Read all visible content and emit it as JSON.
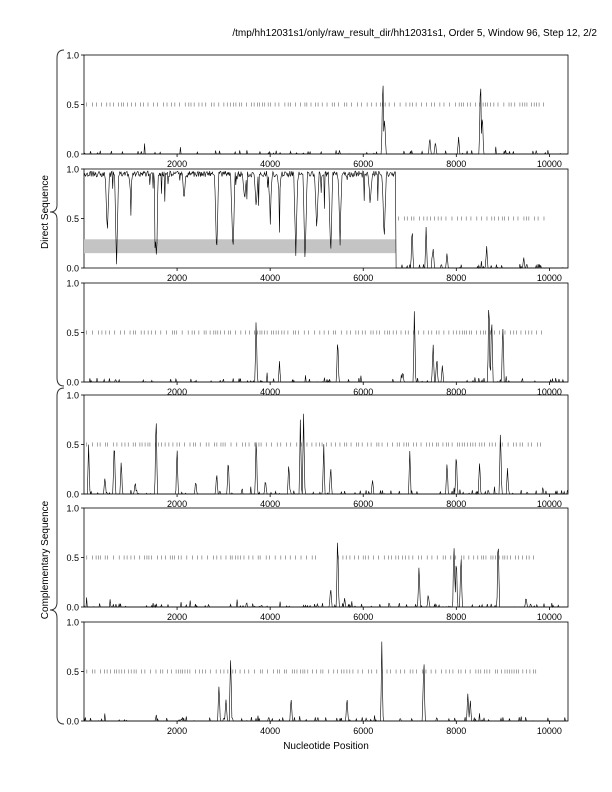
{
  "header": {
    "title": "/tmp/hh12031s1/only/raw_result_dir/hh12031s1, Order 5, Window 96, Step 12, 2/2"
  },
  "groups": {
    "direct_label": "Direct Sequence",
    "complementary_label": "Complementary Sequence"
  },
  "chart_data": [
    {
      "type": "line",
      "panel": 1,
      "group": "direct",
      "xlim": [
        0,
        10400
      ],
      "ylim": [
        0,
        1
      ],
      "x_ticks": [
        "2000",
        "4000",
        "6000",
        "8000",
        "10000"
      ],
      "y_ticks": [
        "0.0",
        "0.5",
        "1.0"
      ],
      "marker_level": 0.5,
      "marker_ranges": [
        [
          0,
          9900
        ]
      ],
      "shaded_band": null,
      "peaks": [
        [
          6420,
          0.93
        ],
        [
          6460,
          0.5
        ],
        [
          7430,
          0.18
        ],
        [
          7550,
          0.15
        ],
        [
          8050,
          0.2
        ],
        [
          8520,
          0.92
        ],
        [
          8560,
          0.45
        ]
      ]
    },
    {
      "type": "line",
      "panel": 2,
      "group": "direct",
      "xlim": [
        0,
        10400
      ],
      "ylim": [
        0,
        1
      ],
      "x_ticks": [
        "2000",
        "4000",
        "6000",
        "8000",
        "10000"
      ],
      "y_ticks": [
        "0.0",
        "0.5",
        "1.0"
      ],
      "marker_level": 0.5,
      "marker_ranges": [
        [
          6700,
          9900
        ]
      ],
      "shaded_band": {
        "x": [
          0,
          6700
        ],
        "y": [
          0.15,
          0.29
        ]
      },
      "high_region": [
        0,
        6700
      ],
      "dips": [
        [
          500,
          0.3
        ],
        [
          700,
          0.02
        ],
        [
          1000,
          0.75
        ],
        [
          1550,
          0.05
        ],
        [
          2150,
          0.65
        ],
        [
          2850,
          0.1
        ],
        [
          3200,
          0.08
        ],
        [
          3450,
          0.65
        ],
        [
          3700,
          0.6
        ],
        [
          4000,
          0.55
        ],
        [
          4200,
          0.7
        ],
        [
          4550,
          0.12
        ],
        [
          4750,
          0.02
        ],
        [
          5000,
          0.35
        ],
        [
          5300,
          0.08
        ],
        [
          5500,
          0.3
        ],
        [
          6150,
          0.6
        ],
        [
          6450,
          0.25
        ]
      ],
      "peaks": [
        [
          7050,
          0.52
        ],
        [
          7350,
          0.45
        ],
        [
          7500,
          0.28
        ],
        [
          7800,
          0.18
        ],
        [
          8650,
          0.25
        ],
        [
          9450,
          0.12
        ]
      ]
    },
    {
      "type": "line",
      "panel": 3,
      "group": "direct",
      "xlim": [
        0,
        10400
      ],
      "ylim": [
        0,
        1
      ],
      "x_ticks": [
        "2000",
        "4000",
        "6000",
        "8000",
        "10000"
      ],
      "y_ticks": [
        "0.0",
        "0.5",
        "1.0"
      ],
      "marker_level": 0.5,
      "marker_ranges": [
        [
          0,
          9900
        ]
      ],
      "shaded_band": null,
      "peaks": [
        [
          3700,
          0.72
        ],
        [
          4200,
          0.18
        ],
        [
          5450,
          0.55
        ],
        [
          6850,
          0.12
        ],
        [
          7100,
          0.85
        ],
        [
          7500,
          0.45
        ],
        [
          7580,
          0.3
        ],
        [
          7700,
          0.2
        ],
        [
          8700,
          0.95
        ],
        [
          8760,
          0.85
        ],
        [
          9000,
          0.72
        ]
      ]
    },
    {
      "type": "line",
      "panel": 4,
      "group": "complementary",
      "xlim": [
        0,
        10400
      ],
      "ylim": [
        0,
        1
      ],
      "x_ticks": [
        "2000",
        "4000",
        "6000",
        "8000",
        "10000"
      ],
      "y_ticks": [
        "0.0",
        "0.5",
        "1.0"
      ],
      "marker_level": 0.5,
      "marker_ranges": [
        [
          0,
          9900
        ]
      ],
      "shaded_band": null,
      "peaks": [
        [
          100,
          0.55
        ],
        [
          450,
          0.2
        ],
        [
          650,
          0.65
        ],
        [
          800,
          0.4
        ],
        [
          1100,
          0.15
        ],
        [
          1550,
          0.98
        ],
        [
          2000,
          0.55
        ],
        [
          2400,
          0.15
        ],
        [
          2850,
          0.25
        ],
        [
          3100,
          0.45
        ],
        [
          3700,
          0.72
        ],
        [
          3900,
          0.18
        ],
        [
          4400,
          0.35
        ],
        [
          4650,
          0.9
        ],
        [
          4720,
          0.95
        ],
        [
          5150,
          0.55
        ],
        [
          5300,
          0.35
        ],
        [
          6200,
          0.18
        ],
        [
          7000,
          0.5
        ],
        [
          7800,
          0.4
        ],
        [
          8000,
          0.52
        ],
        [
          8500,
          0.42
        ],
        [
          8950,
          0.85
        ],
        [
          9100,
          0.3
        ]
      ]
    },
    {
      "type": "line",
      "panel": 5,
      "group": "complementary",
      "xlim": [
        0,
        10400
      ],
      "ylim": [
        0,
        1
      ],
      "x_ticks": [
        "2000",
        "4000",
        "6000",
        "8000",
        "10000"
      ],
      "y_ticks": [
        "0.0",
        "0.5",
        "1.0"
      ],
      "marker_level": 0.5,
      "marker_ranges": [
        [
          0,
          5000
        ],
        [
          5400,
          9700
        ]
      ],
      "shaded_band": null,
      "peaks": [
        [
          5300,
          0.25
        ],
        [
          5450,
          0.78
        ],
        [
          5600,
          0.1
        ],
        [
          7200,
          0.55
        ],
        [
          7400,
          0.15
        ],
        [
          7950,
          0.82
        ],
        [
          8000,
          0.55
        ],
        [
          8100,
          0.7
        ],
        [
          8900,
          0.88
        ],
        [
          9500,
          0.12
        ]
      ]
    },
    {
      "type": "line",
      "panel": 6,
      "group": "complementary",
      "xlim": [
        0,
        10400
      ],
      "ylim": [
        0,
        1
      ],
      "x_ticks": [
        "2000",
        "4000",
        "6000",
        "8000",
        "10000"
      ],
      "y_ticks": [
        "0.0",
        "0.5",
        "1.0"
      ],
      "marker_level": 0.5,
      "marker_ranges": [
        [
          0,
          9800
        ]
      ],
      "shaded_band": null,
      "peaks": [
        [
          2900,
          0.45
        ],
        [
          3050,
          0.3
        ],
        [
          3150,
          0.78
        ],
        [
          4450,
          0.3
        ],
        [
          5650,
          0.28
        ],
        [
          6400,
          0.88
        ],
        [
          7300,
          0.8
        ],
        [
          8250,
          0.35
        ],
        [
          8300,
          0.25
        ]
      ]
    }
  ],
  "xlabel": "Nucleotide Position"
}
